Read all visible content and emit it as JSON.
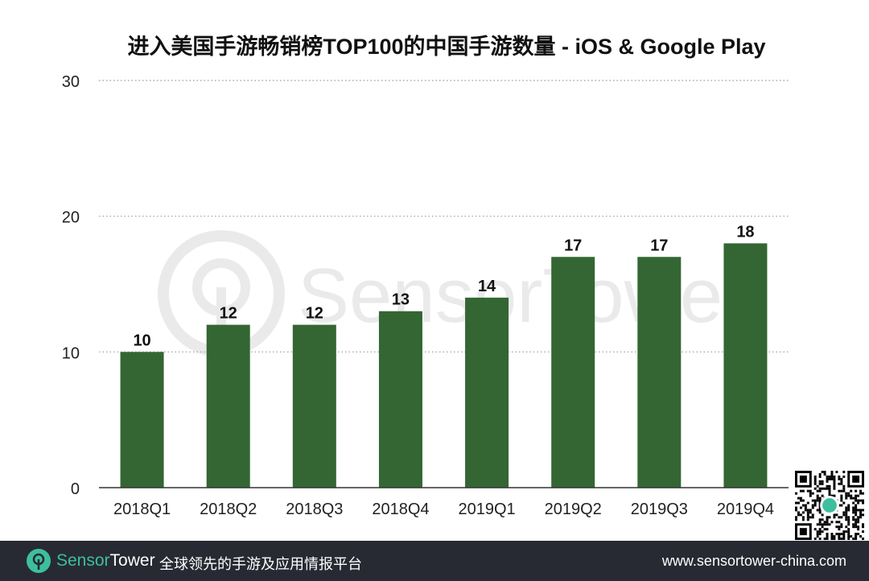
{
  "chart_data": {
    "type": "bar",
    "title": "进入美国手游畅销榜TOP100的中国手游数量 - iOS & Google Play",
    "categories": [
      "2018Q1",
      "2018Q2",
      "2018Q3",
      "2018Q4",
      "2019Q1",
      "2019Q2",
      "2019Q3",
      "2019Q4"
    ],
    "values": [
      10,
      12,
      12,
      13,
      14,
      17,
      17,
      18
    ],
    "xlabel": "",
    "ylabel": "",
    "ylim": [
      0,
      30
    ],
    "yticks": [
      0,
      10,
      20,
      30
    ],
    "grid": true,
    "bar_color": "#336633",
    "data_labels": true
  },
  "watermark": "SensorTower",
  "footer": {
    "brand_part1": "Sensor",
    "brand_part2": "Tower",
    "slogan": "全球领先的手游及应用情报平台",
    "url": "www.sensortower-china.com",
    "accent": "#3dbf9e",
    "background": "#272a33"
  }
}
